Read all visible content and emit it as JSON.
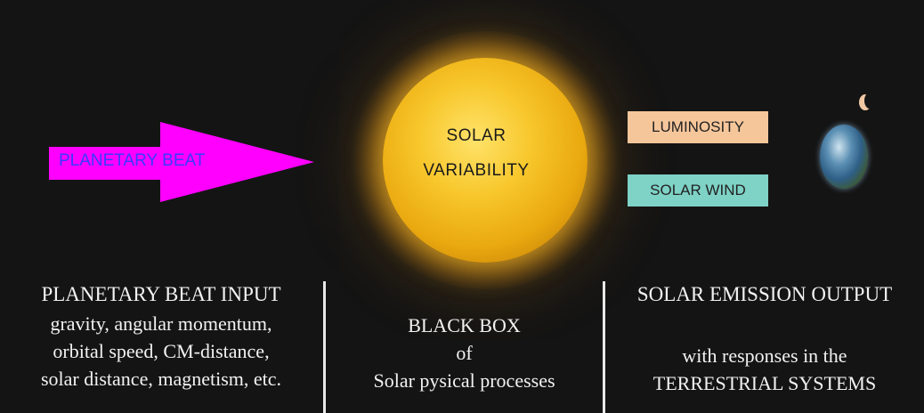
{
  "arrow": {
    "label": "PLANETARY BEAT",
    "color": "#ff00ff"
  },
  "sun": {
    "line1": "SOLAR",
    "line2": "VARIABILITY"
  },
  "outputs": {
    "luminosity": {
      "label": "LUMINOSITY",
      "color": "#f6c69b"
    },
    "solar_wind": {
      "label": "SOLAR WIND",
      "color": "#7ed2c6"
    }
  },
  "columns": {
    "left": {
      "title": "PLANETARY BEAT INPUT",
      "lines": [
        "gravity, angular momentum,",
        "orbital speed, CM-distance,",
        "solar distance, magnetism, etc."
      ]
    },
    "middle": {
      "lines": [
        "BLACK BOX",
        "of",
        "Solar pysical processes"
      ]
    },
    "right": {
      "title": "SOLAR EMISSION OUTPUT",
      "lines": [
        "with responses in the",
        "TERRESTRIAL SYSTEMS"
      ]
    }
  }
}
